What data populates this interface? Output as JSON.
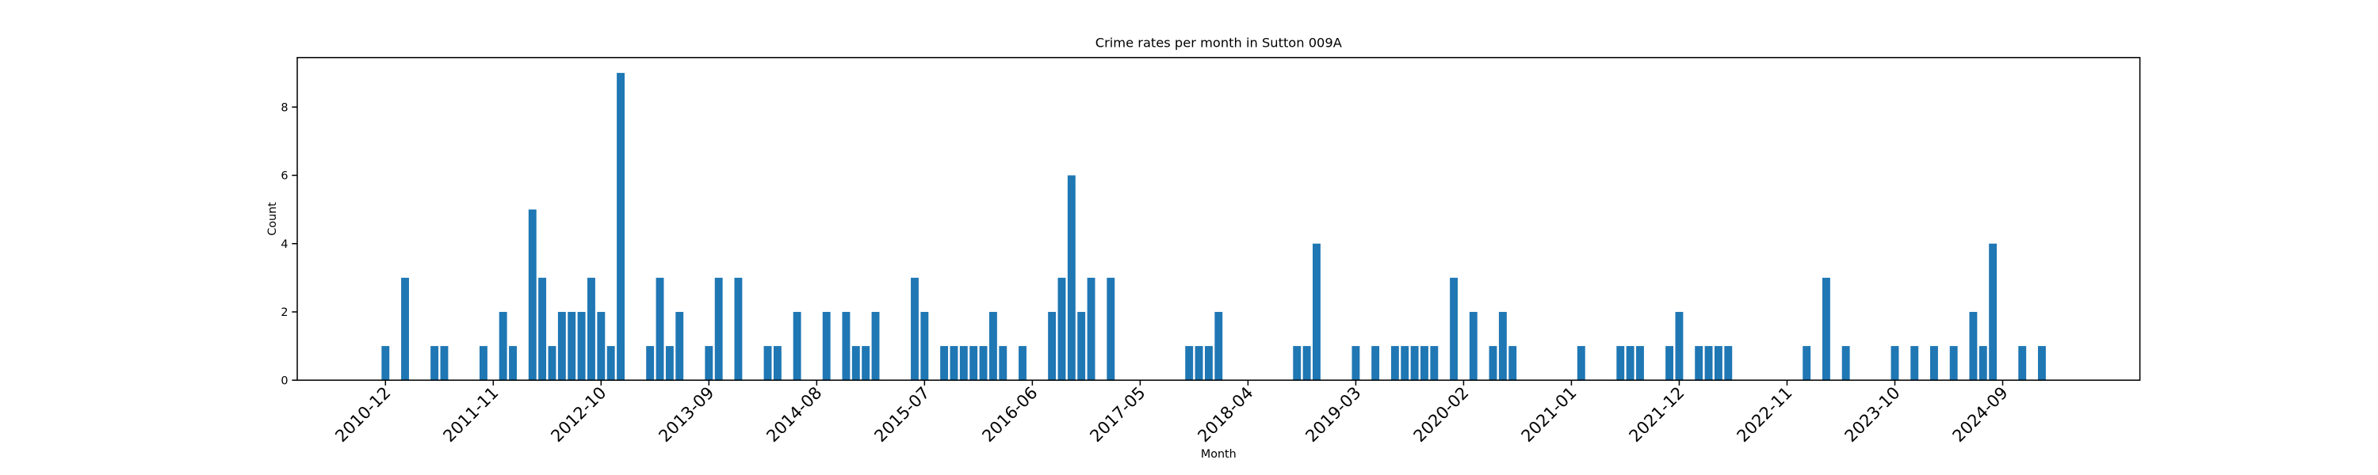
{
  "chart_data": {
    "type": "bar",
    "title": "Crime rates per month in Sutton 009A",
    "x_label": "Month",
    "y_label": "Count",
    "color": "#1f77b4",
    "x": [
      "2010-12",
      "2011-02",
      "2011-05",
      "2011-06",
      "2011-10",
      "2011-12",
      "2012-01",
      "2012-03",
      "2012-04",
      "2012-05",
      "2012-06",
      "2012-07",
      "2012-08",
      "2012-09",
      "2012-10",
      "2012-11",
      "2012-12",
      "2013-03",
      "2013-04",
      "2013-05",
      "2013-06",
      "2013-09",
      "2013-10",
      "2013-12",
      "2014-03",
      "2014-04",
      "2014-06",
      "2014-09",
      "2014-11",
      "2014-12",
      "2015-01",
      "2015-02",
      "2015-06",
      "2015-07",
      "2015-09",
      "2015-10",
      "2015-11",
      "2015-12",
      "2016-01",
      "2016-02",
      "2016-03",
      "2016-05",
      "2016-08",
      "2016-09",
      "2016-10",
      "2016-11",
      "2016-12",
      "2017-02",
      "2017-10",
      "2017-11",
      "2017-12",
      "2018-01",
      "2018-09",
      "2018-10",
      "2018-11",
      "2019-03",
      "2019-05",
      "2019-07",
      "2019-08",
      "2019-09",
      "2019-10",
      "2019-11",
      "2020-01",
      "2020-03",
      "2020-05",
      "2020-06",
      "2020-07",
      "2021-02",
      "2021-06",
      "2021-07",
      "2021-08",
      "2021-11",
      "2021-12",
      "2022-02",
      "2022-03",
      "2022-04",
      "2022-05",
      "2023-01",
      "2023-03",
      "2023-05",
      "2023-10",
      "2023-12",
      "2024-02",
      "2024-04",
      "2024-06",
      "2024-07",
      "2024-08",
      "2024-11",
      "2025-01"
    ],
    "values": [
      1,
      3,
      1,
      1,
      1,
      2,
      1,
      5,
      3,
      1,
      2,
      2,
      2,
      3,
      2,
      1,
      9,
      1,
      3,
      1,
      2,
      1,
      3,
      3,
      1,
      1,
      2,
      2,
      2,
      1,
      1,
      2,
      3,
      2,
      1,
      1,
      1,
      1,
      1,
      2,
      1,
      1,
      2,
      3,
      6,
      2,
      3,
      3,
      1,
      1,
      1,
      2,
      1,
      1,
      4,
      1,
      1,
      1,
      1,
      1,
      1,
      1,
      3,
      2,
      1,
      2,
      1,
      1,
      1,
      1,
      1,
      1,
      2,
      1,
      1,
      1,
      1,
      1,
      3,
      1,
      1,
      1,
      1,
      1,
      2,
      1,
      4,
      1,
      1
    ],
    "xlim": [
      "2010-03",
      "2025-11"
    ],
    "xticks": [
      "2010-12",
      "2011-11",
      "2012-10",
      "2013-09",
      "2014-08",
      "2015-07",
      "2016-06",
      "2017-05",
      "2018-04",
      "2019-03",
      "2020-02",
      "2021-01",
      "2021-12",
      "2022-11",
      "2023-10",
      "2024-09"
    ],
    "ylim": [
      0,
      9.45
    ],
    "yticks": [
      0,
      2,
      4,
      6,
      8
    ]
  }
}
